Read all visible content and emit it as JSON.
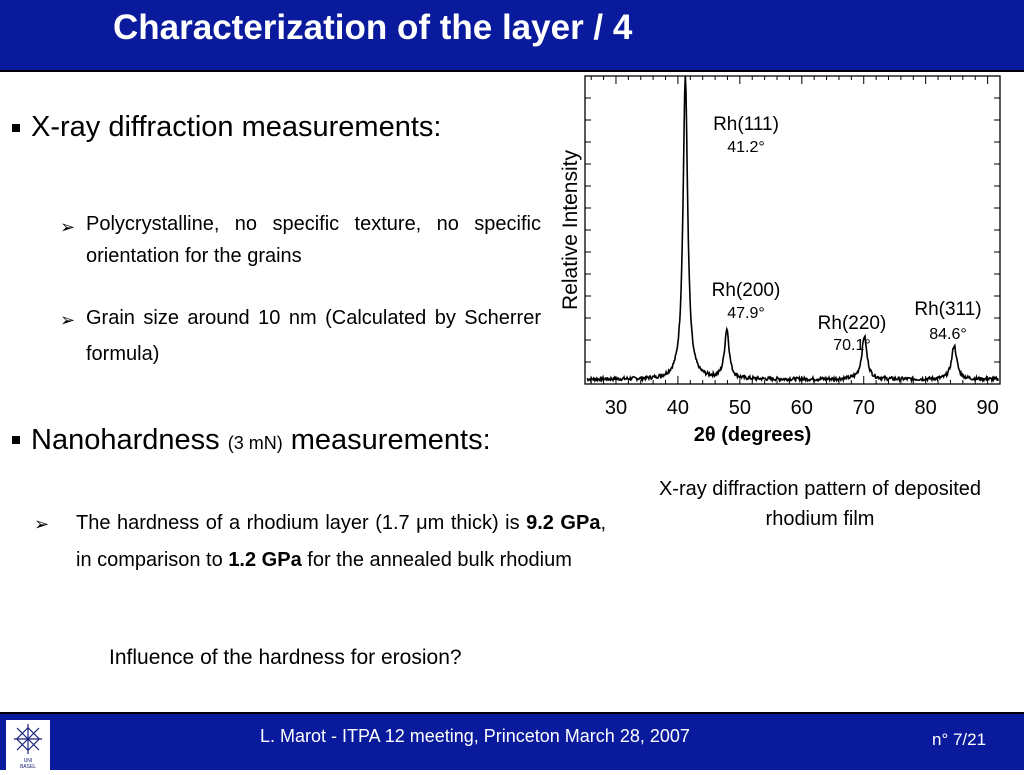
{
  "slide": {
    "title": "Characterization of the layer / 4"
  },
  "xrd": {
    "heading": "X-ray diffraction measurements:",
    "points": [
      "Polycrystalline, no specific texture, no specific orientation for the grains",
      "Grain size around 10 nm (Calculated by Scherrer formula)"
    ]
  },
  "nano": {
    "heading_pre": "Nanohardness",
    "heading_small": "(3 mN)",
    "heading_post": "measurements:",
    "point_part1": "The hardness of a rhodium layer (1.7 μm thick) is",
    "point_bold1": "9.2 GPa",
    "point_part2": ", in comparison to",
    "point_bold2": "1.2 GPa",
    "point_part3": "for the annealed bulk rhodium"
  },
  "question": "Influence of the hardness for erosion?",
  "caption": "X-ray diffraction pattern of deposited rhodium film",
  "footer": {
    "text": "L. Marot - ITPA 12 meeting, Princeton March 28, 2007",
    "page": "n° 7/21",
    "logo_text": "UNI BASEL"
  },
  "chart_data": {
    "type": "line",
    "xlabel": "2θ (degrees)",
    "ylabel": "Relative Intensity",
    "xlim": [
      25,
      92
    ],
    "ylim": [
      0,
      100
    ],
    "xticks": [
      "30",
      "40",
      "50",
      "60",
      "70",
      "80",
      "90"
    ],
    "x_tick_values": [
      30,
      40,
      50,
      60,
      70,
      80,
      90
    ],
    "baseline": 1.5,
    "peaks": [
      {
        "label": "Rh(111)",
        "angle_label": "41.2°",
        "x": 41.2,
        "height": 98,
        "width": 0.45
      },
      {
        "label": "Rh(200)",
        "angle_label": "47.9°",
        "x": 47.9,
        "height": 16,
        "width": 0.45
      },
      {
        "label": "Rh(220)",
        "angle_label": "70.1°",
        "x": 70.1,
        "height": 14,
        "width": 0.5
      },
      {
        "label": "Rh(311)",
        "angle_label": "84.6°",
        "x": 84.6,
        "height": 11,
        "width": 0.5
      }
    ],
    "grid": false
  }
}
